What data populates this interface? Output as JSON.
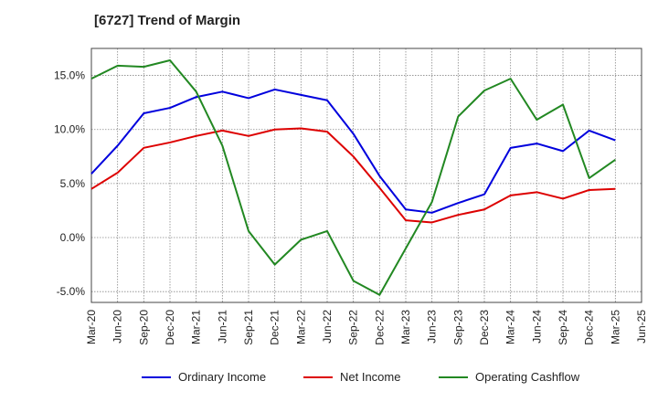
{
  "chart_data": {
    "type": "line",
    "title": "[6727]  Trend of Margin",
    "xlabel": "",
    "ylabel": "",
    "ylim": [
      -6,
      17.5
    ],
    "yticks": [
      "15.0%",
      "10.0%",
      "5.0%",
      "0.0%",
      "-5.0%"
    ],
    "ytick_values": [
      15,
      10,
      5,
      0,
      -5
    ],
    "categories": [
      "Mar-20",
      "Jun-20",
      "Sep-20",
      "Dec-20",
      "Mar-21",
      "Jun-21",
      "Sep-21",
      "Dec-21",
      "Mar-22",
      "Jun-22",
      "Sep-22",
      "Dec-22",
      "Mar-23",
      "Jun-23",
      "Sep-23",
      "Dec-23",
      "Mar-24",
      "Jun-24",
      "Sep-24",
      "Dec-24",
      "Mar-25",
      "Jun-25"
    ],
    "grid": true,
    "legend_position": "bottom",
    "series": [
      {
        "name": "Ordinary Income",
        "color": "#0000dd",
        "values": [
          5.9,
          8.5,
          11.5,
          12.0,
          13.0,
          13.5,
          12.9,
          13.7,
          13.2,
          12.7,
          9.6,
          5.7,
          2.6,
          2.3,
          3.2,
          4.0,
          8.3,
          8.7,
          8.0,
          9.9,
          9.0,
          null
        ]
      },
      {
        "name": "Net Income",
        "color": "#dd0000",
        "values": [
          4.5,
          6.0,
          8.3,
          8.8,
          9.4,
          9.9,
          9.4,
          10.0,
          10.1,
          9.8,
          7.5,
          4.6,
          1.6,
          1.4,
          2.1,
          2.6,
          3.9,
          4.2,
          3.6,
          4.4,
          4.5,
          null
        ]
      },
      {
        "name": "Operating Cashflow",
        "color": "#228822",
        "values": [
          14.7,
          15.9,
          15.8,
          16.4,
          13.5,
          8.5,
          0.6,
          -2.5,
          -0.2,
          0.6,
          -4.0,
          -5.3,
          -1.0,
          3.3,
          11.2,
          13.6,
          14.7,
          10.9,
          12.3,
          5.5,
          7.2,
          null
        ]
      }
    ]
  }
}
